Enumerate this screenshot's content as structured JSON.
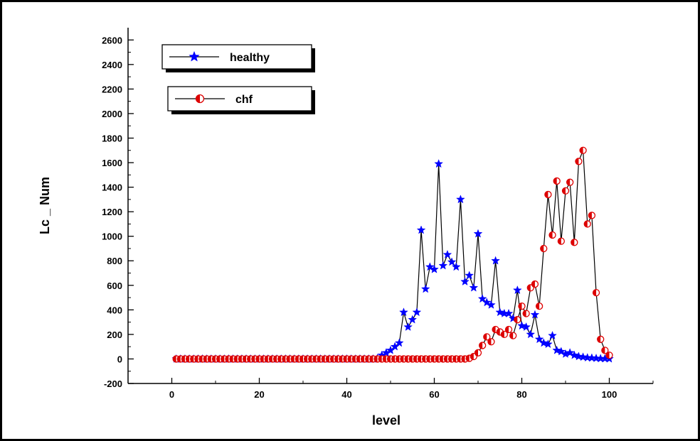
{
  "chart_data": {
    "type": "line",
    "xlabel": "level",
    "ylabel": "Lc _ Num",
    "xlim": [
      -10,
      110
    ],
    "ylim": [
      -200,
      2700
    ],
    "x_ticks": [
      0,
      20,
      40,
      60,
      80,
      100
    ],
    "y_ticks": [
      -200,
      0,
      200,
      400,
      600,
      800,
      1000,
      1200,
      1400,
      1600,
      1800,
      2000,
      2200,
      2400,
      2600
    ],
    "grid": false,
    "legend_position": "top-left",
    "x": [
      1,
      2,
      3,
      4,
      5,
      6,
      7,
      8,
      9,
      10,
      11,
      12,
      13,
      14,
      15,
      16,
      17,
      18,
      19,
      20,
      21,
      22,
      23,
      24,
      25,
      26,
      27,
      28,
      29,
      30,
      31,
      32,
      33,
      34,
      35,
      36,
      37,
      38,
      39,
      40,
      41,
      42,
      43,
      44,
      45,
      46,
      47,
      48,
      49,
      50,
      51,
      52,
      53,
      54,
      55,
      56,
      57,
      58,
      59,
      60,
      61,
      62,
      63,
      64,
      65,
      66,
      67,
      68,
      69,
      70,
      71,
      72,
      73,
      74,
      75,
      76,
      77,
      78,
      79,
      80,
      81,
      82,
      83,
      84,
      85,
      86,
      87,
      88,
      89,
      90,
      91,
      92,
      93,
      94,
      95,
      96,
      97,
      98,
      99,
      100
    ],
    "series": [
      {
        "name": "healthy",
        "color": "#0000ff",
        "marker": "star",
        "values": [
          0,
          0,
          0,
          0,
          0,
          0,
          0,
          0,
          0,
          0,
          0,
          0,
          0,
          0,
          0,
          0,
          0,
          0,
          0,
          0,
          0,
          0,
          0,
          0,
          0,
          0,
          0,
          0,
          0,
          0,
          0,
          0,
          0,
          0,
          0,
          0,
          0,
          0,
          0,
          0,
          0,
          0,
          0,
          0,
          0,
          0,
          5,
          30,
          50,
          70,
          100,
          130,
          380,
          260,
          320,
          380,
          1050,
          570,
          750,
          730,
          1590,
          760,
          850,
          790,
          750,
          1300,
          630,
          680,
          580,
          1020,
          490,
          460,
          440,
          800,
          380,
          370,
          370,
          330,
          560,
          270,
          260,
          200,
          360,
          160,
          130,
          120,
          190,
          70,
          60,
          40,
          50,
          30,
          20,
          15,
          10,
          8,
          5,
          3,
          2,
          1
        ]
      },
      {
        "name": "chf",
        "color": "#dd0000",
        "marker": "half-circle",
        "values": [
          0,
          0,
          0,
          0,
          0,
          0,
          0,
          0,
          0,
          0,
          0,
          0,
          0,
          0,
          0,
          0,
          0,
          0,
          0,
          0,
          0,
          0,
          0,
          0,
          0,
          0,
          0,
          0,
          0,
          0,
          0,
          0,
          0,
          0,
          0,
          0,
          0,
          0,
          0,
          0,
          0,
          0,
          0,
          0,
          0,
          0,
          0,
          0,
          0,
          0,
          0,
          0,
          0,
          0,
          0,
          0,
          0,
          0,
          0,
          0,
          0,
          0,
          0,
          0,
          0,
          0,
          0,
          5,
          20,
          50,
          110,
          180,
          140,
          240,
          220,
          200,
          240,
          190,
          320,
          430,
          370,
          580,
          610,
          430,
          900,
          1340,
          1010,
          1450,
          960,
          1370,
          1440,
          950,
          1610,
          1700,
          1100,
          1170,
          540,
          160,
          70,
          30
        ]
      }
    ]
  }
}
